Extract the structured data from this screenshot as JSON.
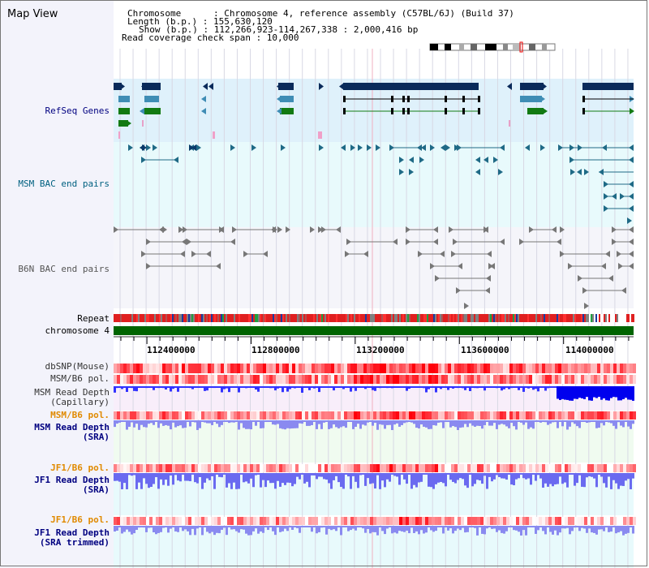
{
  "app": {
    "title": "Map View"
  },
  "info": {
    "chromosome": "Chromosome      : Chromosome 4, reference assembly (C57BL/6J) (Build 37)",
    "length": "Length (b.p.) : 155,630,120",
    "show": "Show (b.p.) : 112,266,923-114,267,338 : 2,000,416 bp",
    "coverage": "Read coverage check span : 10,000"
  },
  "tracks": {
    "refseq": "RefSeq Genes",
    "msm_bac": "MSM BAC end pairs",
    "b6n_bac": "B6N BAC end pairs",
    "repeat": "Repeat",
    "chromosome": "chromosome 4",
    "dbsnp": "dbSNP(Mouse)",
    "msm_pol": "MSM/B6 pol.",
    "msm_depth_cap_1": "MSM Read Depth",
    "msm_depth_cap_2": "(Capillary)",
    "msm_pol2": "MSM/B6 pol.",
    "msm_depth_sra_1": "MSM Read Depth",
    "msm_depth_sra_2": "(SRA)",
    "jf1_pol": "JF1/B6 pol.",
    "jf1_depth_sra_1": "JF1 Read Depth",
    "jf1_depth_sra_2": "(SRA)",
    "jf1_pol2": "JF1/B6 pol.",
    "jf1_depth_trim_1": "JF1 Read Depth",
    "jf1_depth_trim_2": "(SRA trimmed)"
  },
  "axis": {
    "ticks": [
      "112400000",
      "112800000",
      "113200000",
      "113600000",
      "114000000"
    ]
  },
  "colors": {
    "refseq_bg": "#dff1fb",
    "msm_bg": "#e8fafc",
    "b6n_bg": "#f5f5fa",
    "track_blue": "#000080",
    "track_teal": "#006080",
    "track_gray": "#555555",
    "track_orange": "#e08a00",
    "chromosome": "#006400",
    "snp_red": "#ff0000",
    "depth_blue": "#3333ff"
  }
}
